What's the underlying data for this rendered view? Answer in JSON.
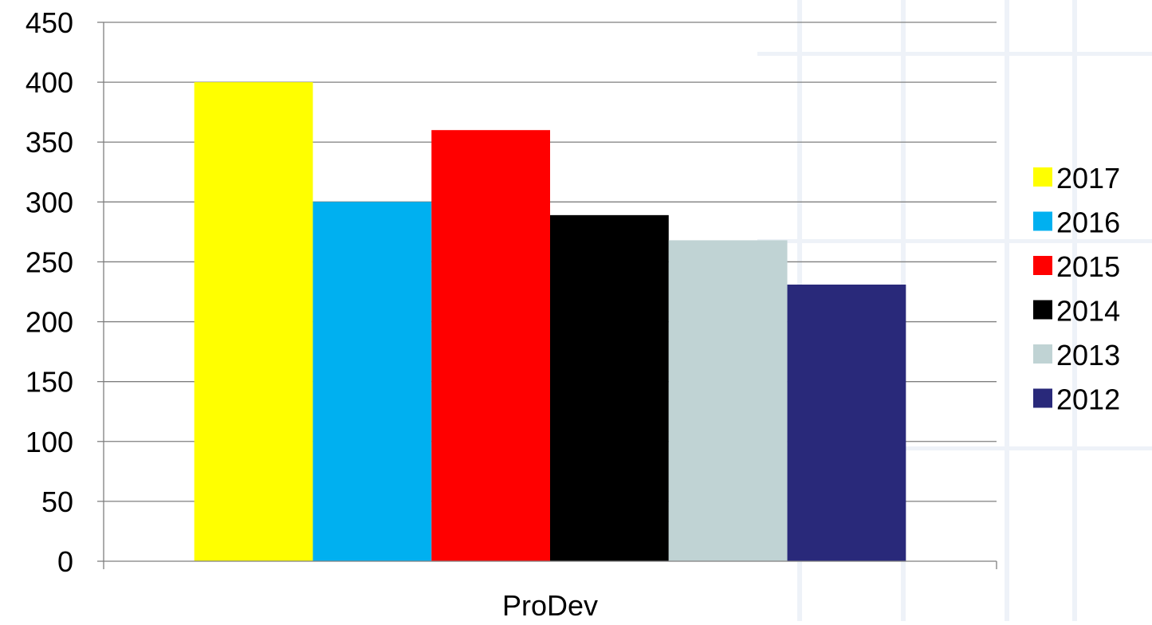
{
  "chart_data": {
    "type": "bar",
    "categories": [
      "ProDev"
    ],
    "series": [
      {
        "name": "2017",
        "values": [
          400
        ],
        "color": "#FFFF00"
      },
      {
        "name": "2016",
        "values": [
          300
        ],
        "color": "#00B0F0"
      },
      {
        "name": "2015",
        "values": [
          360
        ],
        "color": "#FF0000"
      },
      {
        "name": "2014",
        "values": [
          289
        ],
        "color": "#000000"
      },
      {
        "name": "2013",
        "values": [
          268
        ],
        "color": "#C0D3D4"
      },
      {
        "name": "2012",
        "values": [
          231
        ],
        "color": "#29297A"
      }
    ],
    "ylim": [
      0,
      450
    ],
    "yticks": [
      "0",
      "50",
      "100",
      "150",
      "200",
      "250",
      "300",
      "350",
      "400",
      "450"
    ],
    "grid": true,
    "legend": "right"
  }
}
